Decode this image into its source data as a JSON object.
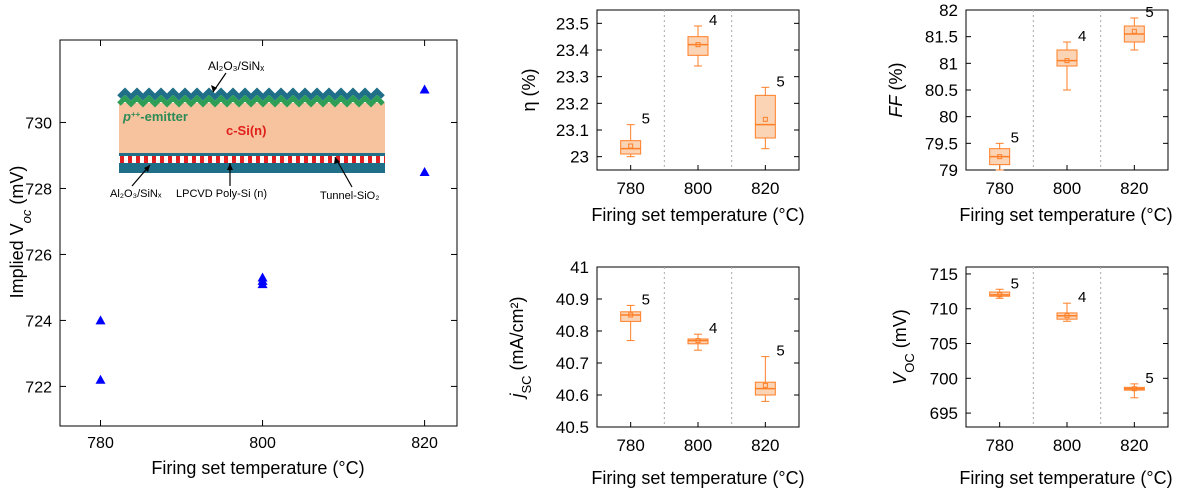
{
  "colors": {
    "triangle": "#0000ff",
    "box": "#ff7f27",
    "boxfill": "#fbd3b5",
    "sep": "#aaaaaa",
    "layer_teal": "#1f6f88",
    "layer_green": "#2e9e57",
    "layer_si": "#f6c39e",
    "layer_red": "#e02020",
    "label_green": "#2e8b57",
    "label_red": "#e0201b"
  },
  "chart_data": [
    {
      "id": "implied_voc",
      "type": "scatter",
      "marker": "triangle",
      "xlabel": "Firing set temperature (°C)",
      "ylabel_main": "Implied V",
      "ylabel_sub": "oc",
      "ylabel_unit": " (mV)",
      "xlim": [
        775,
        824
      ],
      "ylim": [
        720.8,
        732.5
      ],
      "xticks": [
        780,
        800,
        820
      ],
      "yticks": [
        722,
        724,
        726,
        728,
        730
      ],
      "points": [
        [
          780,
          722.2
        ],
        [
          780,
          724.0
        ],
        [
          800,
          725.1
        ],
        [
          800,
          725.2
        ],
        [
          800,
          725.3
        ],
        [
          820,
          728.5
        ],
        [
          820,
          731.0
        ]
      ],
      "inset": {
        "top_label": "Al₂O₃/SiNₓ",
        "emitter_label_main": "p",
        "emitter_label_sup": "++",
        "emitter_label_rest": "-emitter",
        "bulk_label": "c-Si(n)",
        "bl_label": "Al₂O₃/SiNₓ",
        "bm_label": "LPCVD Poly-Si (n)",
        "br_label": "Tunnel-SiO₂"
      }
    },
    {
      "id": "eta",
      "type": "box",
      "ylabel": "η (%)",
      "xlabel": "Firing set temperature (°C)",
      "ylim": [
        22.95,
        23.55
      ],
      "yticks": [
        23,
        23.1,
        23.2,
        23.3,
        23.4,
        23.5
      ],
      "categories": [
        "780",
        "800",
        "820"
      ],
      "boxes": [
        {
          "x": "780",
          "min": 23.0,
          "q1": 23.01,
          "med": 23.03,
          "q3": 23.06,
          "max": 23.12,
          "mean": 23.04,
          "n": "5"
        },
        {
          "x": "800",
          "min": 23.34,
          "q1": 23.38,
          "med": 23.42,
          "q3": 23.45,
          "max": 23.49,
          "mean": 23.42,
          "n": "4"
        },
        {
          "x": "820",
          "min": 23.03,
          "q1": 23.07,
          "med": 23.12,
          "q3": 23.23,
          "max": 23.26,
          "mean": 23.14,
          "n": "5"
        }
      ]
    },
    {
      "id": "ff",
      "type": "box",
      "ylabel": "FF (%)",
      "ylabel_italic": "FF",
      "ylabel_rest": " (%)",
      "xlabel": "Firing set temperature (°C)",
      "ylim": [
        79,
        82
      ],
      "yticks": [
        79,
        79.5,
        80,
        80.5,
        81,
        81.5,
        82
      ],
      "categories": [
        "780",
        "800",
        "820"
      ],
      "boxes": [
        {
          "x": "780",
          "min": 79.0,
          "q1": 79.1,
          "med": 79.25,
          "q3": 79.4,
          "max": 79.5,
          "mean": 79.25,
          "n": "5"
        },
        {
          "x": "800",
          "min": 80.5,
          "q1": 80.95,
          "med": 81.05,
          "q3": 81.25,
          "max": 81.4,
          "mean": 81.05,
          "n": "4"
        },
        {
          "x": "820",
          "min": 81.25,
          "q1": 81.4,
          "med": 81.55,
          "q3": 81.7,
          "max": 81.85,
          "mean": 81.6,
          "n": "5"
        }
      ]
    },
    {
      "id": "jsc",
      "type": "box",
      "ylabel_main": "j",
      "ylabel_sub": "SC",
      "ylabel_unit": " (mA/cm²)",
      "xlabel": "Firing set temperature (°C)",
      "ylim": [
        40.5,
        41
      ],
      "yticks": [
        40.5,
        40.6,
        40.7,
        40.8,
        40.9,
        41
      ],
      "categories": [
        "780",
        "800",
        "820"
      ],
      "boxes": [
        {
          "x": "780",
          "min": 40.77,
          "q1": 40.83,
          "med": 40.85,
          "q3": 40.86,
          "max": 40.88,
          "mean": 40.85,
          "n": "5"
        },
        {
          "x": "800",
          "min": 40.74,
          "q1": 40.76,
          "med": 40.77,
          "q3": 40.775,
          "max": 40.79,
          "mean": 40.77,
          "n": "4"
        },
        {
          "x": "820",
          "min": 40.58,
          "q1": 40.6,
          "med": 40.62,
          "q3": 40.64,
          "max": 40.72,
          "mean": 40.63,
          "n": "5"
        }
      ]
    },
    {
      "id": "voc",
      "type": "box",
      "ylabel_main": "V",
      "ylabel_sub": "OC",
      "ylabel_unit": " (mV)",
      "xlabel": "Firing set temperature (°C)",
      "ylim": [
        693,
        716
      ],
      "yticks": [
        695,
        700,
        705,
        710,
        715
      ],
      "categories": [
        "780",
        "800",
        "820"
      ],
      "boxes": [
        {
          "x": "780",
          "min": 711.5,
          "q1": 711.8,
          "med": 712.0,
          "q3": 712.4,
          "max": 712.8,
          "mean": 712.0,
          "n": "5"
        },
        {
          "x": "800",
          "min": 708.2,
          "q1": 708.5,
          "med": 709.0,
          "q3": 709.4,
          "max": 710.8,
          "mean": 709.0,
          "n": "4"
        },
        {
          "x": "820",
          "min": 697.2,
          "q1": 698.3,
          "med": 698.5,
          "q3": 698.7,
          "max": 699.2,
          "mean": 698.5,
          "n": "5"
        }
      ]
    }
  ]
}
